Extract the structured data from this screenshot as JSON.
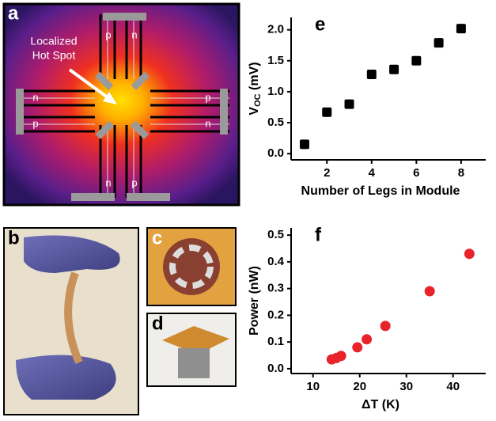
{
  "panels": {
    "a": {
      "label": "a",
      "annotation": [
        "Localized",
        "Hot Spot"
      ],
      "leg_labels": [
        "p",
        "n",
        "n",
        "p",
        "p",
        "n",
        "n",
        "p"
      ]
    },
    "b": {
      "label": "b"
    },
    "c": {
      "label": "c"
    },
    "d": {
      "label": "d"
    }
  },
  "chart_data": [
    {
      "type": "scatter",
      "panel_label": "e",
      "x_label": "Number of Legs in Module",
      "y_label": [
        "V",
        "OC",
        " (mV)"
      ],
      "x": [
        1,
        2,
        3,
        4,
        5,
        6,
        7,
        8
      ],
      "values": [
        0.15,
        0.67,
        0.8,
        1.28,
        1.36,
        1.5,
        1.79,
        2.02
      ],
      "color": "#000000",
      "marker": "square",
      "xlim": [
        0.4,
        9.1
      ],
      "ylim": [
        -0.1,
        2.2
      ],
      "xticks": [
        2,
        4,
        6,
        8
      ],
      "yticks": [
        {
          "value": 0,
          "label": "0.0"
        },
        0.5,
        {
          "value": 1,
          "label": "1.0"
        },
        1.5,
        {
          "value": 2,
          "label": "2.0"
        }
      ]
    },
    {
      "type": "scatter",
      "panel_label": "f",
      "x_label": "ΔT (K)",
      "y_label": [
        "Power (nW)"
      ],
      "x": [
        14,
        15,
        16,
        19.5,
        21.5,
        25.5,
        35,
        43.5
      ],
      "values": [
        0.035,
        0.04,
        0.048,
        0.08,
        0.11,
        0.16,
        0.29,
        0.43
      ],
      "color": "#e8232a",
      "marker": "circle",
      "xlim": [
        5.3,
        47
      ],
      "ylim": [
        -0.018,
        0.527
      ],
      "xticks": [
        10,
        20,
        30,
        40
      ],
      "yticks": [
        {
          "value": 0,
          "label": "0.0"
        },
        0.1,
        0.2,
        0.3,
        0.4,
        0.5
      ]
    }
  ]
}
